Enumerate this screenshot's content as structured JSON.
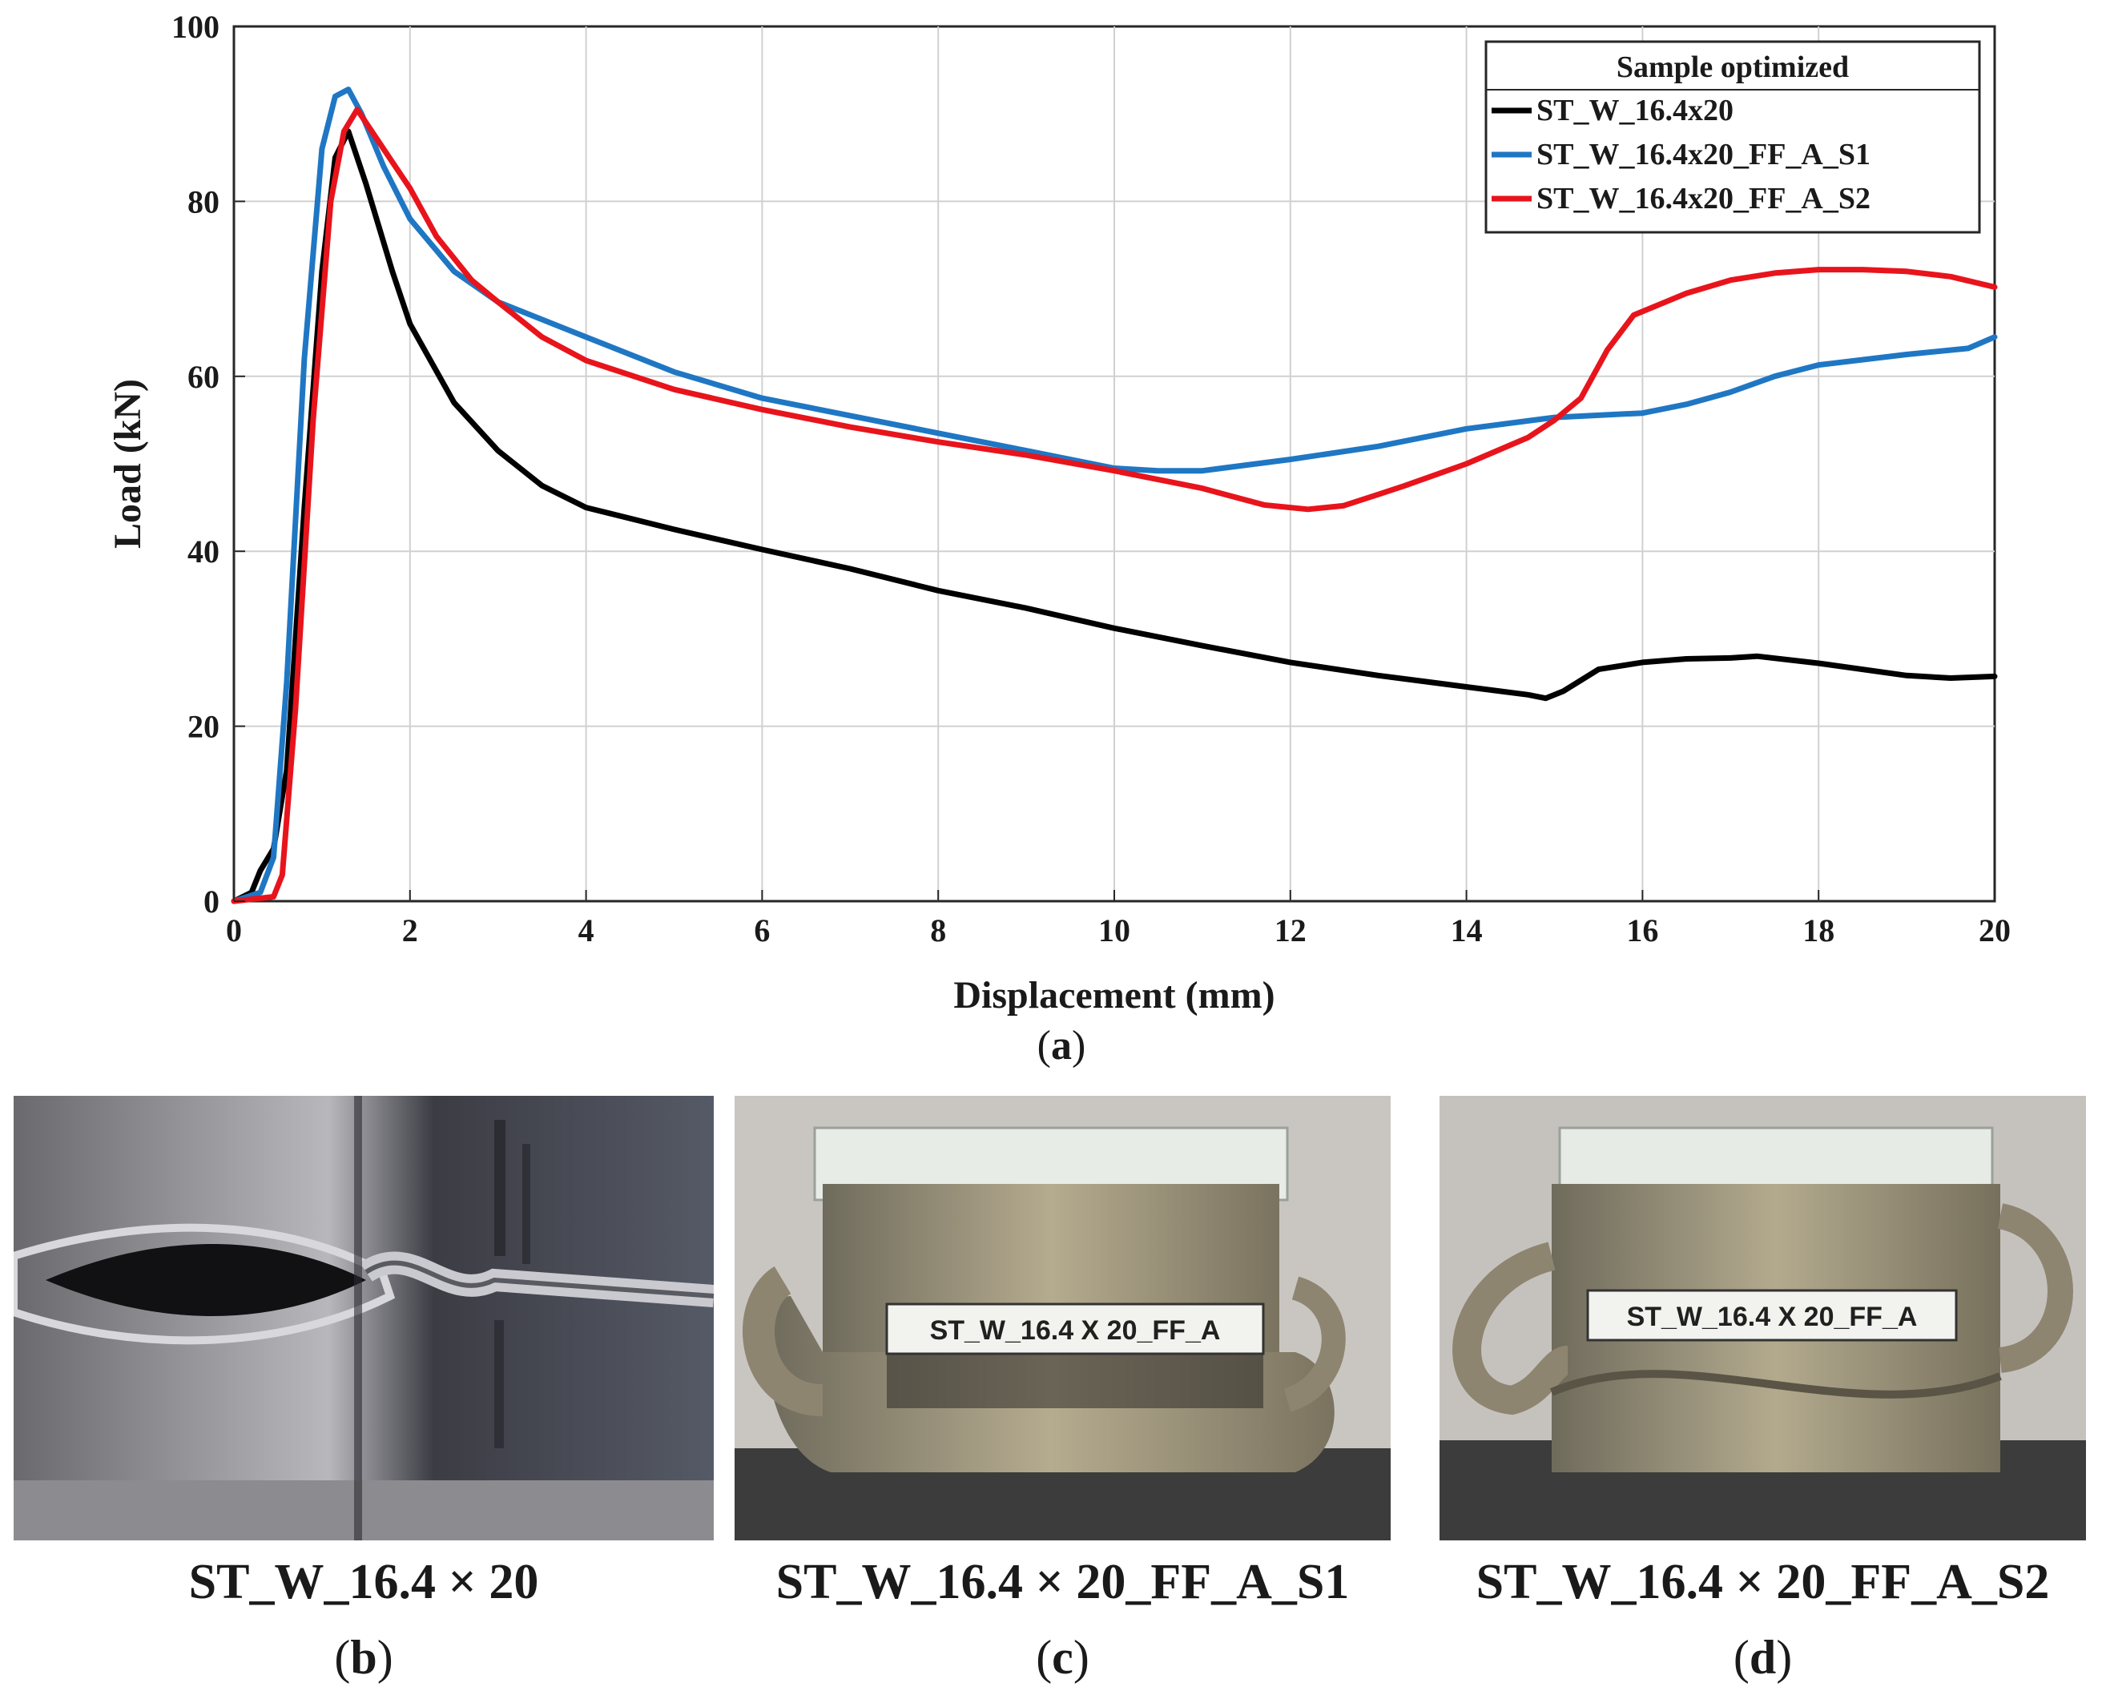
{
  "chart_data": {
    "type": "line",
    "title": "",
    "xlabel": "Displacement (mm)",
    "ylabel": "Load (kN)",
    "xlim": [
      0,
      20
    ],
    "ylim": [
      0,
      100
    ],
    "xticks": [
      0,
      2,
      4,
      6,
      8,
      10,
      12,
      14,
      16,
      18,
      20
    ],
    "yticks": [
      0,
      20,
      40,
      60,
      80,
      100
    ],
    "grid": true,
    "legend": {
      "title": "Sample optimized",
      "placement": "top-right"
    },
    "series": [
      {
        "name": "ST_W_16.4x20",
        "color": "#000000",
        "x": [
          0,
          0.2,
          0.3,
          0.45,
          0.6,
          0.8,
          1.0,
          1.15,
          1.3,
          1.5,
          1.8,
          2.0,
          2.5,
          3.0,
          3.5,
          4.0,
          5.0,
          6.0,
          7.0,
          8.0,
          9.0,
          10.0,
          11.0,
          12.0,
          13.0,
          14.0,
          14.7,
          14.9,
          15.1,
          15.5,
          16.0,
          16.5,
          17.0,
          17.3,
          18.0,
          19.0,
          19.5,
          20.0
        ],
        "values": [
          0,
          1,
          3.5,
          6,
          15,
          45,
          72,
          85,
          88,
          82,
          72,
          66,
          57,
          51.5,
          47.5,
          45,
          42.5,
          40.2,
          38,
          35.5,
          33.5,
          31.2,
          29.2,
          27.3,
          25.8,
          24.5,
          23.6,
          23.2,
          24,
          26.5,
          27.3,
          27.7,
          27.8,
          28,
          27.2,
          25.8,
          25.5,
          25.7
        ]
      },
      {
        "name": "ST_W_16.4x20_FF_A_S1",
        "color": "#1f77c4",
        "x": [
          0,
          0.3,
          0.45,
          0.6,
          0.8,
          1.0,
          1.15,
          1.3,
          1.45,
          1.7,
          2.0,
          2.5,
          3.0,
          4.0,
          5.0,
          6.0,
          7.0,
          8.0,
          9.0,
          10.0,
          10.5,
          11.0,
          12.0,
          13.0,
          14.0,
          15.0,
          16.0,
          16.5,
          17.0,
          17.5,
          18.0,
          19.0,
          19.7,
          20.0
        ],
        "values": [
          0,
          1,
          5,
          25,
          62,
          86,
          92,
          92.8,
          90,
          84,
          78,
          72,
          68.5,
          64.5,
          60.5,
          57.5,
          55.5,
          53.5,
          51.5,
          49.5,
          49.2,
          49.2,
          50.5,
          52,
          54,
          55.3,
          55.8,
          56.8,
          58.2,
          60,
          61.3,
          62.5,
          63.2,
          64.5
        ]
      },
      {
        "name": "ST_W_16.4x20_FF_A_S2",
        "color": "#e8141c",
        "x": [
          0,
          0.45,
          0.55,
          0.7,
          0.9,
          1.1,
          1.25,
          1.4,
          1.6,
          1.8,
          2.0,
          2.3,
          2.7,
          3.0,
          3.5,
          4.0,
          5.0,
          6.0,
          7.0,
          8.0,
          9.0,
          10.0,
          11.0,
          11.7,
          12.2,
          12.6,
          13.0,
          13.3,
          14.0,
          14.7,
          15.0,
          15.3,
          15.6,
          15.9,
          16.5,
          17.0,
          17.5,
          18.0,
          18.5,
          19.0,
          19.5,
          20.0
        ],
        "values": [
          0,
          0.5,
          3,
          22,
          55,
          80,
          88,
          90.5,
          87.5,
          84.5,
          81.5,
          76,
          71,
          68.5,
          64.5,
          61.8,
          58.5,
          56.2,
          54.2,
          52.5,
          51,
          49.2,
          47.2,
          45.3,
          44.8,
          45.2,
          46.5,
          47.5,
          50,
          53,
          55,
          57.5,
          63,
          67,
          69.5,
          71,
          71.8,
          72.2,
          72.2,
          72,
          71.4,
          70.2
        ]
      }
    ]
  },
  "figure": {
    "label_a": "a",
    "panels": [
      {
        "caption": "ST_W_16.4 × 20",
        "label": "b",
        "tag": ""
      },
      {
        "caption": "ST_W_16.4 × 20_FF_A_S1",
        "label": "c",
        "tag": "ST_W_16.4 X 20_FF_A"
      },
      {
        "caption": "ST_W_16.4 × 20_FF_A_S2",
        "label": "d",
        "tag": "ST_W_16.4 X 20_FF_A"
      }
    ]
  }
}
